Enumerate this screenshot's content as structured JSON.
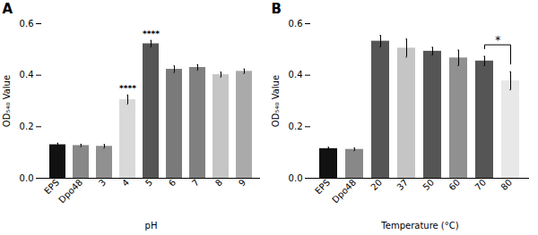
{
  "chart_data": [
    {
      "type": "bar",
      "title": "A",
      "xlabel": "pH",
      "ylabel": "OD₅₄₀ Value",
      "categories": [
        "EPS",
        "Dpo48",
        "3",
        "4",
        "5",
        "6",
        "7",
        "8",
        "9"
      ],
      "values": [
        0.13,
        0.127,
        0.124,
        0.305,
        0.522,
        0.423,
        0.43,
        0.402,
        0.415
      ],
      "errors": [
        0.006,
        0.005,
        0.007,
        0.018,
        0.013,
        0.013,
        0.011,
        0.01,
        0.009
      ],
      "colors": [
        "#111111",
        "#888888",
        "#909090",
        "#d9d9d9",
        "#555555",
        "#7a7a7a",
        "#808080",
        "#c5c5c5",
        "#aaaaaa"
      ],
      "ylim": [
        0,
        0.6
      ],
      "yticks": [
        {
          "value": 0,
          "label": "0.0"
        },
        0.2,
        0.4,
        0.6
      ],
      "annotations": [
        {
          "category": "4",
          "text": "****"
        },
        {
          "category": "5",
          "text": "****"
        }
      ]
    },
    {
      "type": "bar",
      "title": "B",
      "xlabel": "Temperature (°C)",
      "ylabel": "OD₅₄₀ Value",
      "categories": [
        "EPS",
        "Dpo48",
        "20",
        "37",
        "50",
        "60",
        "70",
        "80"
      ],
      "values": [
        0.115,
        0.112,
        0.532,
        0.505,
        0.493,
        0.467,
        0.455,
        0.378
      ],
      "errors": [
        0.005,
        0.005,
        0.022,
        0.035,
        0.015,
        0.03,
        0.018,
        0.035
      ],
      "colors": [
        "#111111",
        "#888888",
        "#555555",
        "#c5c5c5",
        "#555555",
        "#909090",
        "#555555",
        "#e8e8e8"
      ],
      "ylim": [
        0,
        0.6
      ],
      "yticks": [
        {
          "value": 0,
          "label": "0.0"
        },
        0.2,
        0.4,
        0.6
      ],
      "significance_bracket": {
        "from": "70",
        "to": "80",
        "text": "*"
      }
    }
  ]
}
